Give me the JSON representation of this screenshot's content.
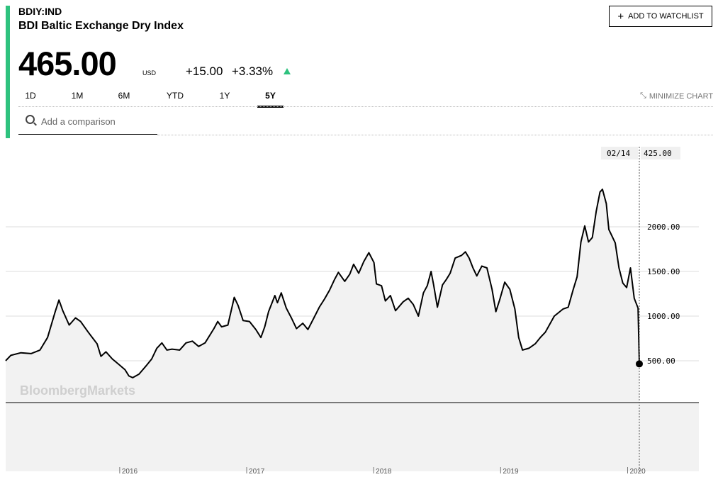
{
  "header": {
    "ticker": "BDIY:IND",
    "name": "BDI Baltic Exchange Dry Index",
    "watchlist_label": "ADD TO WATCHLIST"
  },
  "quote": {
    "price": "465.00",
    "currency": "USD",
    "change": "+15.00",
    "change_pct": "+3.33%",
    "direction": "up",
    "accent_color": "#2ec27e"
  },
  "tabs": [
    {
      "label": "1D",
      "active": false
    },
    {
      "label": "1M",
      "active": false
    },
    {
      "label": "6M",
      "active": false
    },
    {
      "label": "YTD",
      "active": false
    },
    {
      "label": "1Y",
      "active": false
    },
    {
      "label": "5Y",
      "active": true
    }
  ],
  "minimize_label": "MINIMIZE CHART",
  "search": {
    "placeholder": "Add a comparison"
  },
  "chart_data": {
    "type": "area",
    "watermark": "BloombergMarkets",
    "crosshair": {
      "date": "02/14",
      "value": "425.00"
    },
    "y_ticks": [
      {
        "label": "2000.00",
        "value": 2000
      },
      {
        "label": "1500.00",
        "value": 1500
      },
      {
        "label": "1000.00",
        "value": 1000
      },
      {
        "label": "500.00",
        "value": 500
      }
    ],
    "x_ticks": [
      {
        "label": "2016",
        "value": 2016.0
      },
      {
        "label": "2017",
        "value": 2017.0
      },
      {
        "label": "2018",
        "value": 2018.0
      },
      {
        "label": "2019",
        "value": 2019.0
      },
      {
        "label": "2020",
        "value": 2020.0
      }
    ],
    "xlim": [
      2015.13,
      2020.12
    ],
    "grid": true,
    "line_color": "#000000",
    "fill_color": "#f2f2f2",
    "points": [
      [
        2015.13,
        500
      ],
      [
        2015.17,
        560
      ],
      [
        2015.25,
        590
      ],
      [
        2015.33,
        580
      ],
      [
        2015.4,
        620
      ],
      [
        2015.46,
        760
      ],
      [
        2015.52,
        1050
      ],
      [
        2015.55,
        1180
      ],
      [
        2015.58,
        1060
      ],
      [
        2015.63,
        900
      ],
      [
        2015.68,
        980
      ],
      [
        2015.72,
        940
      ],
      [
        2015.78,
        820
      ],
      [
        2015.85,
        690
      ],
      [
        2015.88,
        550
      ],
      [
        2015.92,
        600
      ],
      [
        2015.97,
        520
      ],
      [
        2016.02,
        460
      ],
      [
        2016.07,
        400
      ],
      [
        2016.1,
        330
      ],
      [
        2016.13,
        310
      ],
      [
        2016.18,
        350
      ],
      [
        2016.24,
        450
      ],
      [
        2016.28,
        520
      ],
      [
        2016.32,
        640
      ],
      [
        2016.36,
        700
      ],
      [
        2016.4,
        620
      ],
      [
        2016.44,
        630
      ],
      [
        2016.5,
        620
      ],
      [
        2016.55,
        700
      ],
      [
        2016.6,
        720
      ],
      [
        2016.65,
        660
      ],
      [
        2016.7,
        700
      ],
      [
        2016.77,
        860
      ],
      [
        2016.8,
        940
      ],
      [
        2016.83,
        880
      ],
      [
        2016.88,
        900
      ],
      [
        2016.93,
        1210
      ],
      [
        2016.96,
        1120
      ],
      [
        2017.0,
        950
      ],
      [
        2017.05,
        940
      ],
      [
        2017.1,
        850
      ],
      [
        2017.14,
        760
      ],
      [
        2017.17,
        880
      ],
      [
        2017.2,
        1050
      ],
      [
        2017.25,
        1230
      ],
      [
        2017.27,
        1150
      ],
      [
        2017.3,
        1260
      ],
      [
        2017.34,
        1090
      ],
      [
        2017.38,
        980
      ],
      [
        2017.42,
        860
      ],
      [
        2017.47,
        920
      ],
      [
        2017.51,
        850
      ],
      [
        2017.55,
        960
      ],
      [
        2017.6,
        1100
      ],
      [
        2017.64,
        1190
      ],
      [
        2017.68,
        1290
      ],
      [
        2017.72,
        1410
      ],
      [
        2017.75,
        1490
      ],
      [
        2017.8,
        1390
      ],
      [
        2017.84,
        1470
      ],
      [
        2017.87,
        1580
      ],
      [
        2017.91,
        1480
      ],
      [
        2017.95,
        1610
      ],
      [
        2017.99,
        1710
      ],
      [
        2018.03,
        1600
      ],
      [
        2018.05,
        1360
      ],
      [
        2018.09,
        1340
      ],
      [
        2018.12,
        1170
      ],
      [
        2018.16,
        1230
      ],
      [
        2018.2,
        1060
      ],
      [
        2018.26,
        1160
      ],
      [
        2018.3,
        1200
      ],
      [
        2018.34,
        1130
      ],
      [
        2018.38,
        1000
      ],
      [
        2018.42,
        1260
      ],
      [
        2018.45,
        1340
      ],
      [
        2018.48,
        1500
      ],
      [
        2018.5,
        1350
      ],
      [
        2018.53,
        1100
      ],
      [
        2018.57,
        1350
      ],
      [
        2018.6,
        1410
      ],
      [
        2018.63,
        1480
      ],
      [
        2018.67,
        1650
      ],
      [
        2018.72,
        1680
      ],
      [
        2018.75,
        1720
      ],
      [
        2018.78,
        1650
      ],
      [
        2018.81,
        1540
      ],
      [
        2018.84,
        1450
      ],
      [
        2018.88,
        1560
      ],
      [
        2018.92,
        1540
      ],
      [
        2018.96,
        1300
      ],
      [
        2018.99,
        1050
      ],
      [
        2019.02,
        1180
      ],
      [
        2019.06,
        1380
      ],
      [
        2019.1,
        1300
      ],
      [
        2019.14,
        1080
      ],
      [
        2019.17,
        760
      ],
      [
        2019.2,
        620
      ],
      [
        2019.25,
        640
      ],
      [
        2019.3,
        690
      ],
      [
        2019.34,
        760
      ],
      [
        2019.38,
        820
      ],
      [
        2019.45,
        1000
      ],
      [
        2019.52,
        1080
      ],
      [
        2019.56,
        1100
      ],
      [
        2019.6,
        1300
      ],
      [
        2019.63,
        1440
      ],
      [
        2019.66,
        1830
      ],
      [
        2019.69,
        2010
      ],
      [
        2019.72,
        1830
      ],
      [
        2019.75,
        1880
      ],
      [
        2019.78,
        2170
      ],
      [
        2019.81,
        2390
      ],
      [
        2019.83,
        2420
      ],
      [
        2019.86,
        2260
      ],
      [
        2019.88,
        1970
      ],
      [
        2019.9,
        1910
      ],
      [
        2019.93,
        1820
      ],
      [
        2019.96,
        1540
      ],
      [
        2019.99,
        1370
      ],
      [
        2020.02,
        1320
      ],
      [
        2020.05,
        1540
      ],
      [
        2020.08,
        1200
      ],
      [
        2020.11,
        1090
      ],
      [
        2020.12,
        465
      ]
    ]
  }
}
